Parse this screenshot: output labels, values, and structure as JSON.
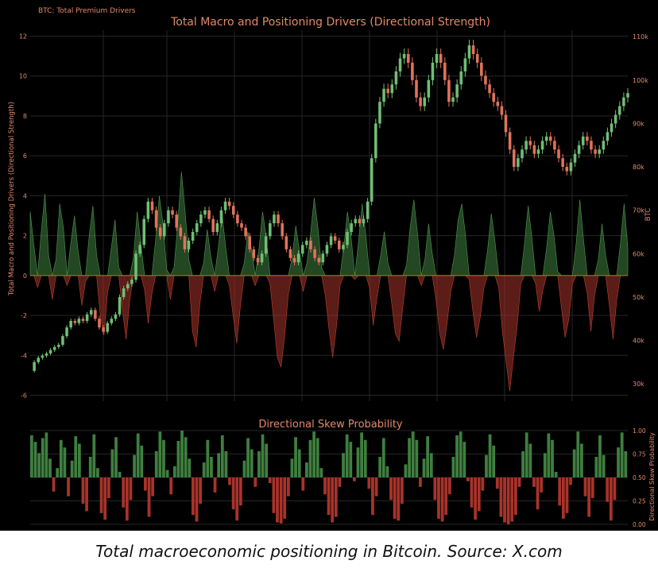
{
  "header": {
    "tag": "BTC: Total Premium Drivers"
  },
  "caption": "Total macroeconomic positioning in Bitcoin. Source: X.com",
  "colors": {
    "background": "#000000",
    "text_accent": "#e2896a",
    "positive": "#3f7f3f",
    "negative": "#a8332a",
    "candle_up": "#6fbf73",
    "candle_down": "#e2725b",
    "grid": "#262626",
    "zero_line": "#b5642f"
  },
  "chart_data": [
    {
      "type": "area",
      "title": "Total Macro and Positioning Drivers (Directional Strength)",
      "ylabel": "Total Macro and Positioning Drivers (Directional Strength)",
      "y2label": "BTC",
      "ylim": [
        -6.3,
        12.3
      ],
      "y_ticks": [
        12,
        10,
        8,
        6,
        4,
        2,
        0,
        -2,
        -4,
        -6
      ],
      "y2lim": [
        26000,
        111500
      ],
      "y2_ticks": [
        110000,
        100000,
        90000,
        80000,
        70000,
        60000,
        50000,
        40000,
        30000
      ],
      "y2_tick_labels": [
        "110k",
        "100k",
        "90k",
        "80k",
        "70k",
        "60k",
        "50k",
        "40k",
        "30k"
      ],
      "grid": true,
      "strength_series": {
        "name": "Total Macro and Positioning Drivers",
        "values": [
          3.2,
          1.5,
          -0.6,
          2.2,
          4.1,
          1.0,
          -1.2,
          0.8,
          3.6,
          2.4,
          -0.5,
          1.6,
          3.0,
          1.2,
          -1.5,
          -0.3,
          2.0,
          3.5,
          1.0,
          -2.0,
          -3.0,
          -0.8,
          1.4,
          2.8,
          0.4,
          -1.7,
          -3.2,
          -1.2,
          0.9,
          3.2,
          1.6,
          -0.7,
          -2.4,
          -0.9,
          1.8,
          4.0,
          2.6,
          0.3,
          -1.2,
          0.4,
          2.6,
          5.2,
          3.2,
          0.8,
          -2.8,
          -3.6,
          -1.4,
          0.6,
          2.3,
          0.9,
          -0.8,
          1.4,
          3.1,
          1.4,
          -0.5,
          -2.0,
          -3.4,
          -1.5,
          0.6,
          2.2,
          1.3,
          -0.5,
          1.3,
          3.2,
          1.9,
          -0.4,
          -2.2,
          -4.1,
          -4.6,
          -3.0,
          -0.9,
          0.9,
          2.5,
          1.2,
          -0.8,
          0.6,
          2.1,
          3.9,
          2.4,
          0.4,
          -1.0,
          -2.7,
          -4.1,
          -2.6,
          -0.5,
          1.4,
          3.2,
          1.9,
          -0.2,
          1.7,
          3.6,
          2.0,
          -0.6,
          -2.5,
          -1.1,
          1.0,
          2.2,
          0.6,
          -1.4,
          -2.9,
          -3.3,
          -1.6,
          0.5,
          2.4,
          3.8,
          2.1,
          -0.5,
          0.8,
          2.6,
          1.1,
          -1.2,
          -2.9,
          -3.7,
          -2.4,
          -0.8,
          1.0,
          2.8,
          3.6,
          2.0,
          -0.2,
          -1.8,
          -3.1,
          -2.1,
          -0.6,
          1.3,
          3.1,
          1.7,
          -0.6,
          -2.8,
          -4.3,
          -5.8,
          -4.1,
          -2.5,
          -0.4,
          1.6,
          3.5,
          1.9,
          -0.4,
          -1.8,
          -0.7,
          1.4,
          3.2,
          2.0,
          0.2,
          -1.6,
          -3.1,
          -2.2,
          -0.4,
          1.6,
          3.8,
          1.8,
          -0.9,
          -2.8,
          -1.0,
          0.8,
          2.6,
          1.0,
          -1.5,
          -3.2,
          -1.2,
          1.6,
          3.6,
          1.4
        ],
        "fill_positive": "#3f7f3f",
        "fill_negative": "#a8332a"
      },
      "btc_series": {
        "name": "BTC",
        "values": [
          33000,
          35000,
          36000,
          36500,
          37000,
          37800,
          38500,
          39000,
          41000,
          43000,
          44500,
          44000,
          45000,
          44500,
          46000,
          47000,
          45000,
          43000,
          42000,
          44000,
          45000,
          46000,
          50000,
          52000,
          53000,
          54000,
          60000,
          62000,
          68000,
          72000,
          70000,
          66000,
          64000,
          67000,
          70000,
          69000,
          66000,
          64000,
          61000,
          63000,
          65000,
          67000,
          69000,
          70000,
          68000,
          65000,
          67000,
          70000,
          72000,
          71000,
          69000,
          67000,
          66000,
          64000,
          61000,
          59000,
          58000,
          60000,
          64000,
          67000,
          69000,
          67000,
          64000,
          61000,
          59000,
          58000,
          60000,
          62000,
          63000,
          61000,
          59000,
          58000,
          60000,
          62000,
          64000,
          63000,
          61000,
          62000,
          65000,
          67000,
          68000,
          67000,
          68000,
          72000,
          82000,
          90000,
          95000,
          98000,
          97000,
          99000,
          102000,
          105000,
          106000,
          104000,
          100000,
          96000,
          94000,
          96000,
          100000,
          104000,
          106000,
          104000,
          100000,
          95000,
          96000,
          99000,
          102000,
          105000,
          108000,
          106000,
          104000,
          101000,
          99000,
          97000,
          95000,
          94000,
          92000,
          88000,
          84000,
          80000,
          82000,
          84000,
          86000,
          85000,
          83000,
          84000,
          86000,
          87000,
          86000,
          84000,
          82000,
          80000,
          79000,
          81000,
          83000,
          85000,
          87000,
          86000,
          84000,
          83000,
          84000,
          86000,
          88000,
          90000,
          92000,
          94000,
          96000,
          97000
        ],
        "up_color": "#6fbf73",
        "down_color": "#e2725b"
      }
    },
    {
      "type": "bar",
      "title": "Directional Skew Probability",
      "ylabel": "Directional Skew Probability",
      "ylim": [
        0,
        1
      ],
      "y_ticks": [
        1.0,
        0.75,
        0.5,
        0.25,
        0.0
      ],
      "y_tick_labels": [
        "1.00",
        "0.75",
        "0.50",
        "0.25",
        "0.00"
      ],
      "baseline": 0.5,
      "values": [
        0.95,
        0.88,
        0.76,
        0.92,
        0.98,
        0.7,
        0.35,
        0.6,
        0.9,
        0.82,
        0.3,
        0.68,
        0.94,
        0.86,
        0.22,
        0.14,
        0.72,
        0.96,
        0.6,
        0.12,
        0.05,
        0.28,
        0.8,
        0.93,
        0.56,
        0.18,
        0.04,
        0.26,
        0.74,
        0.97,
        0.84,
        0.36,
        0.08,
        0.3,
        0.78,
        0.99,
        0.9,
        0.58,
        0.32,
        0.62,
        0.89,
        1.0,
        0.93,
        0.7,
        0.1,
        0.03,
        0.22,
        0.66,
        0.9,
        0.72,
        0.34,
        0.76,
        0.95,
        0.78,
        0.42,
        0.16,
        0.04,
        0.2,
        0.68,
        0.92,
        0.8,
        0.4,
        0.78,
        0.96,
        0.86,
        0.44,
        0.12,
        0.02,
        0.01,
        0.06,
        0.3,
        0.7,
        0.93,
        0.8,
        0.36,
        0.66,
        0.9,
        0.99,
        0.92,
        0.6,
        0.32,
        0.1,
        0.02,
        0.08,
        0.4,
        0.76,
        0.96,
        0.88,
        0.46,
        0.82,
        0.98,
        0.9,
        0.38,
        0.1,
        0.3,
        0.72,
        0.92,
        0.62,
        0.26,
        0.06,
        0.04,
        0.22,
        0.64,
        0.92,
        0.99,
        0.9,
        0.4,
        0.7,
        0.94,
        0.76,
        0.26,
        0.06,
        0.03,
        0.1,
        0.32,
        0.72,
        0.95,
        0.99,
        0.88,
        0.46,
        0.18,
        0.05,
        0.14,
        0.36,
        0.74,
        0.96,
        0.84,
        0.38,
        0.08,
        0.02,
        0.0,
        0.03,
        0.1,
        0.4,
        0.78,
        0.98,
        0.86,
        0.4,
        0.16,
        0.34,
        0.76,
        0.97,
        0.9,
        0.56,
        0.2,
        0.06,
        0.12,
        0.42,
        0.8,
        0.99,
        0.86,
        0.3,
        0.08,
        0.28,
        0.72,
        0.95,
        0.74,
        0.24,
        0.04,
        0.26,
        0.82,
        0.98,
        0.78
      ],
      "positive_color": "#3f7f3f",
      "negative_color": "#a8332a"
    }
  ]
}
